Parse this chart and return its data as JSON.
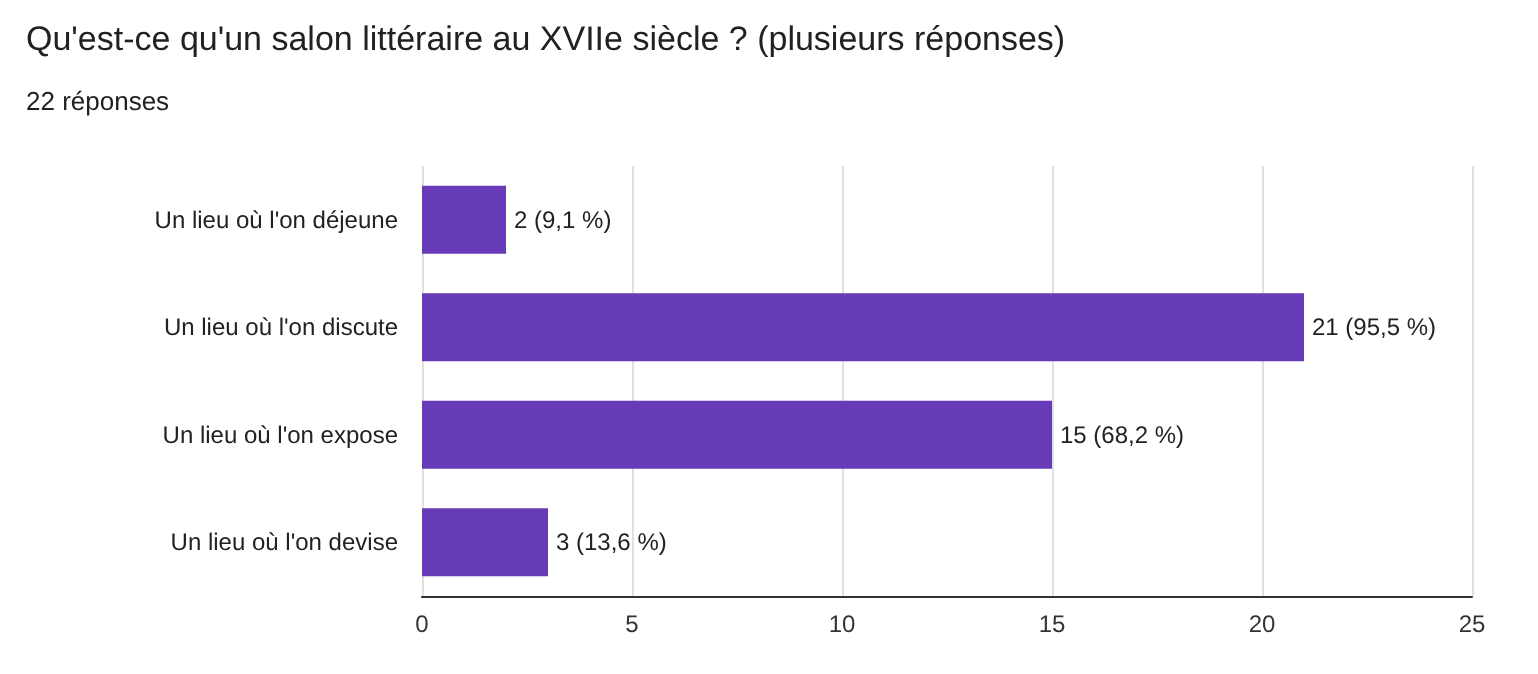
{
  "chart_data": {
    "type": "bar",
    "orientation": "horizontal",
    "title": "Qu'est-ce qu'un salon littéraire au XVIIe siècle ? (plusieurs réponses)",
    "subtitle": "22 réponses",
    "categories": [
      "Un lieu où l'on déjeune",
      "Un lieu où l'on discute",
      "Un lieu où l'on expose",
      "Un lieu où l'on devise"
    ],
    "values": [
      2,
      21,
      15,
      3
    ],
    "value_labels": [
      "2 (9,1 %)",
      "21 (95,5 %)",
      "15 (68,2 %)",
      "3 (13,6 %)"
    ],
    "color": "#673ab7",
    "xlim": [
      0,
      25
    ],
    "xticks": [
      0,
      5,
      10,
      15,
      20,
      25
    ],
    "grid": "x"
  }
}
